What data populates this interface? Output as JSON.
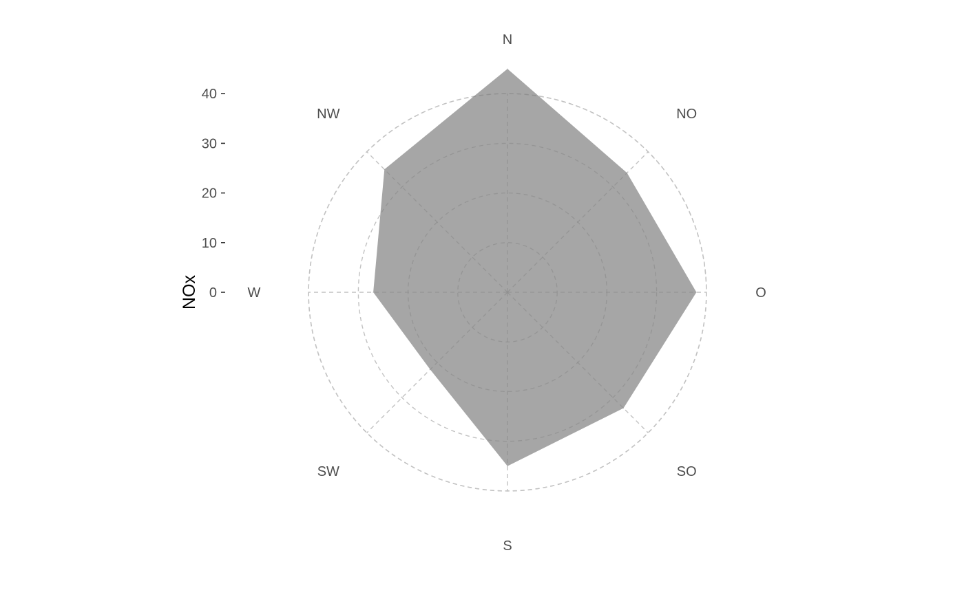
{
  "chart_data": {
    "type": "radar",
    "ylabel": "NOx",
    "categories": [
      "N",
      "NO",
      "O",
      "SO",
      "S",
      "SW",
      "W",
      "NW"
    ],
    "series": [
      {
        "values": [
          45,
          34,
          38,
          33,
          35,
          22,
          27,
          35
        ]
      }
    ],
    "ylim": [
      0,
      40
    ],
    "rticks": [
      0,
      10,
      20,
      30,
      40
    ],
    "rtick_labels": [
      "0",
      "10",
      "20",
      "30",
      "40"
    ],
    "grid": true,
    "grid_style": "dashed",
    "colors": {
      "fill": "#a6a6a6",
      "grid": "#c2c2c2",
      "tick_text": "#4d4d4d",
      "title_text": "#000000"
    }
  }
}
